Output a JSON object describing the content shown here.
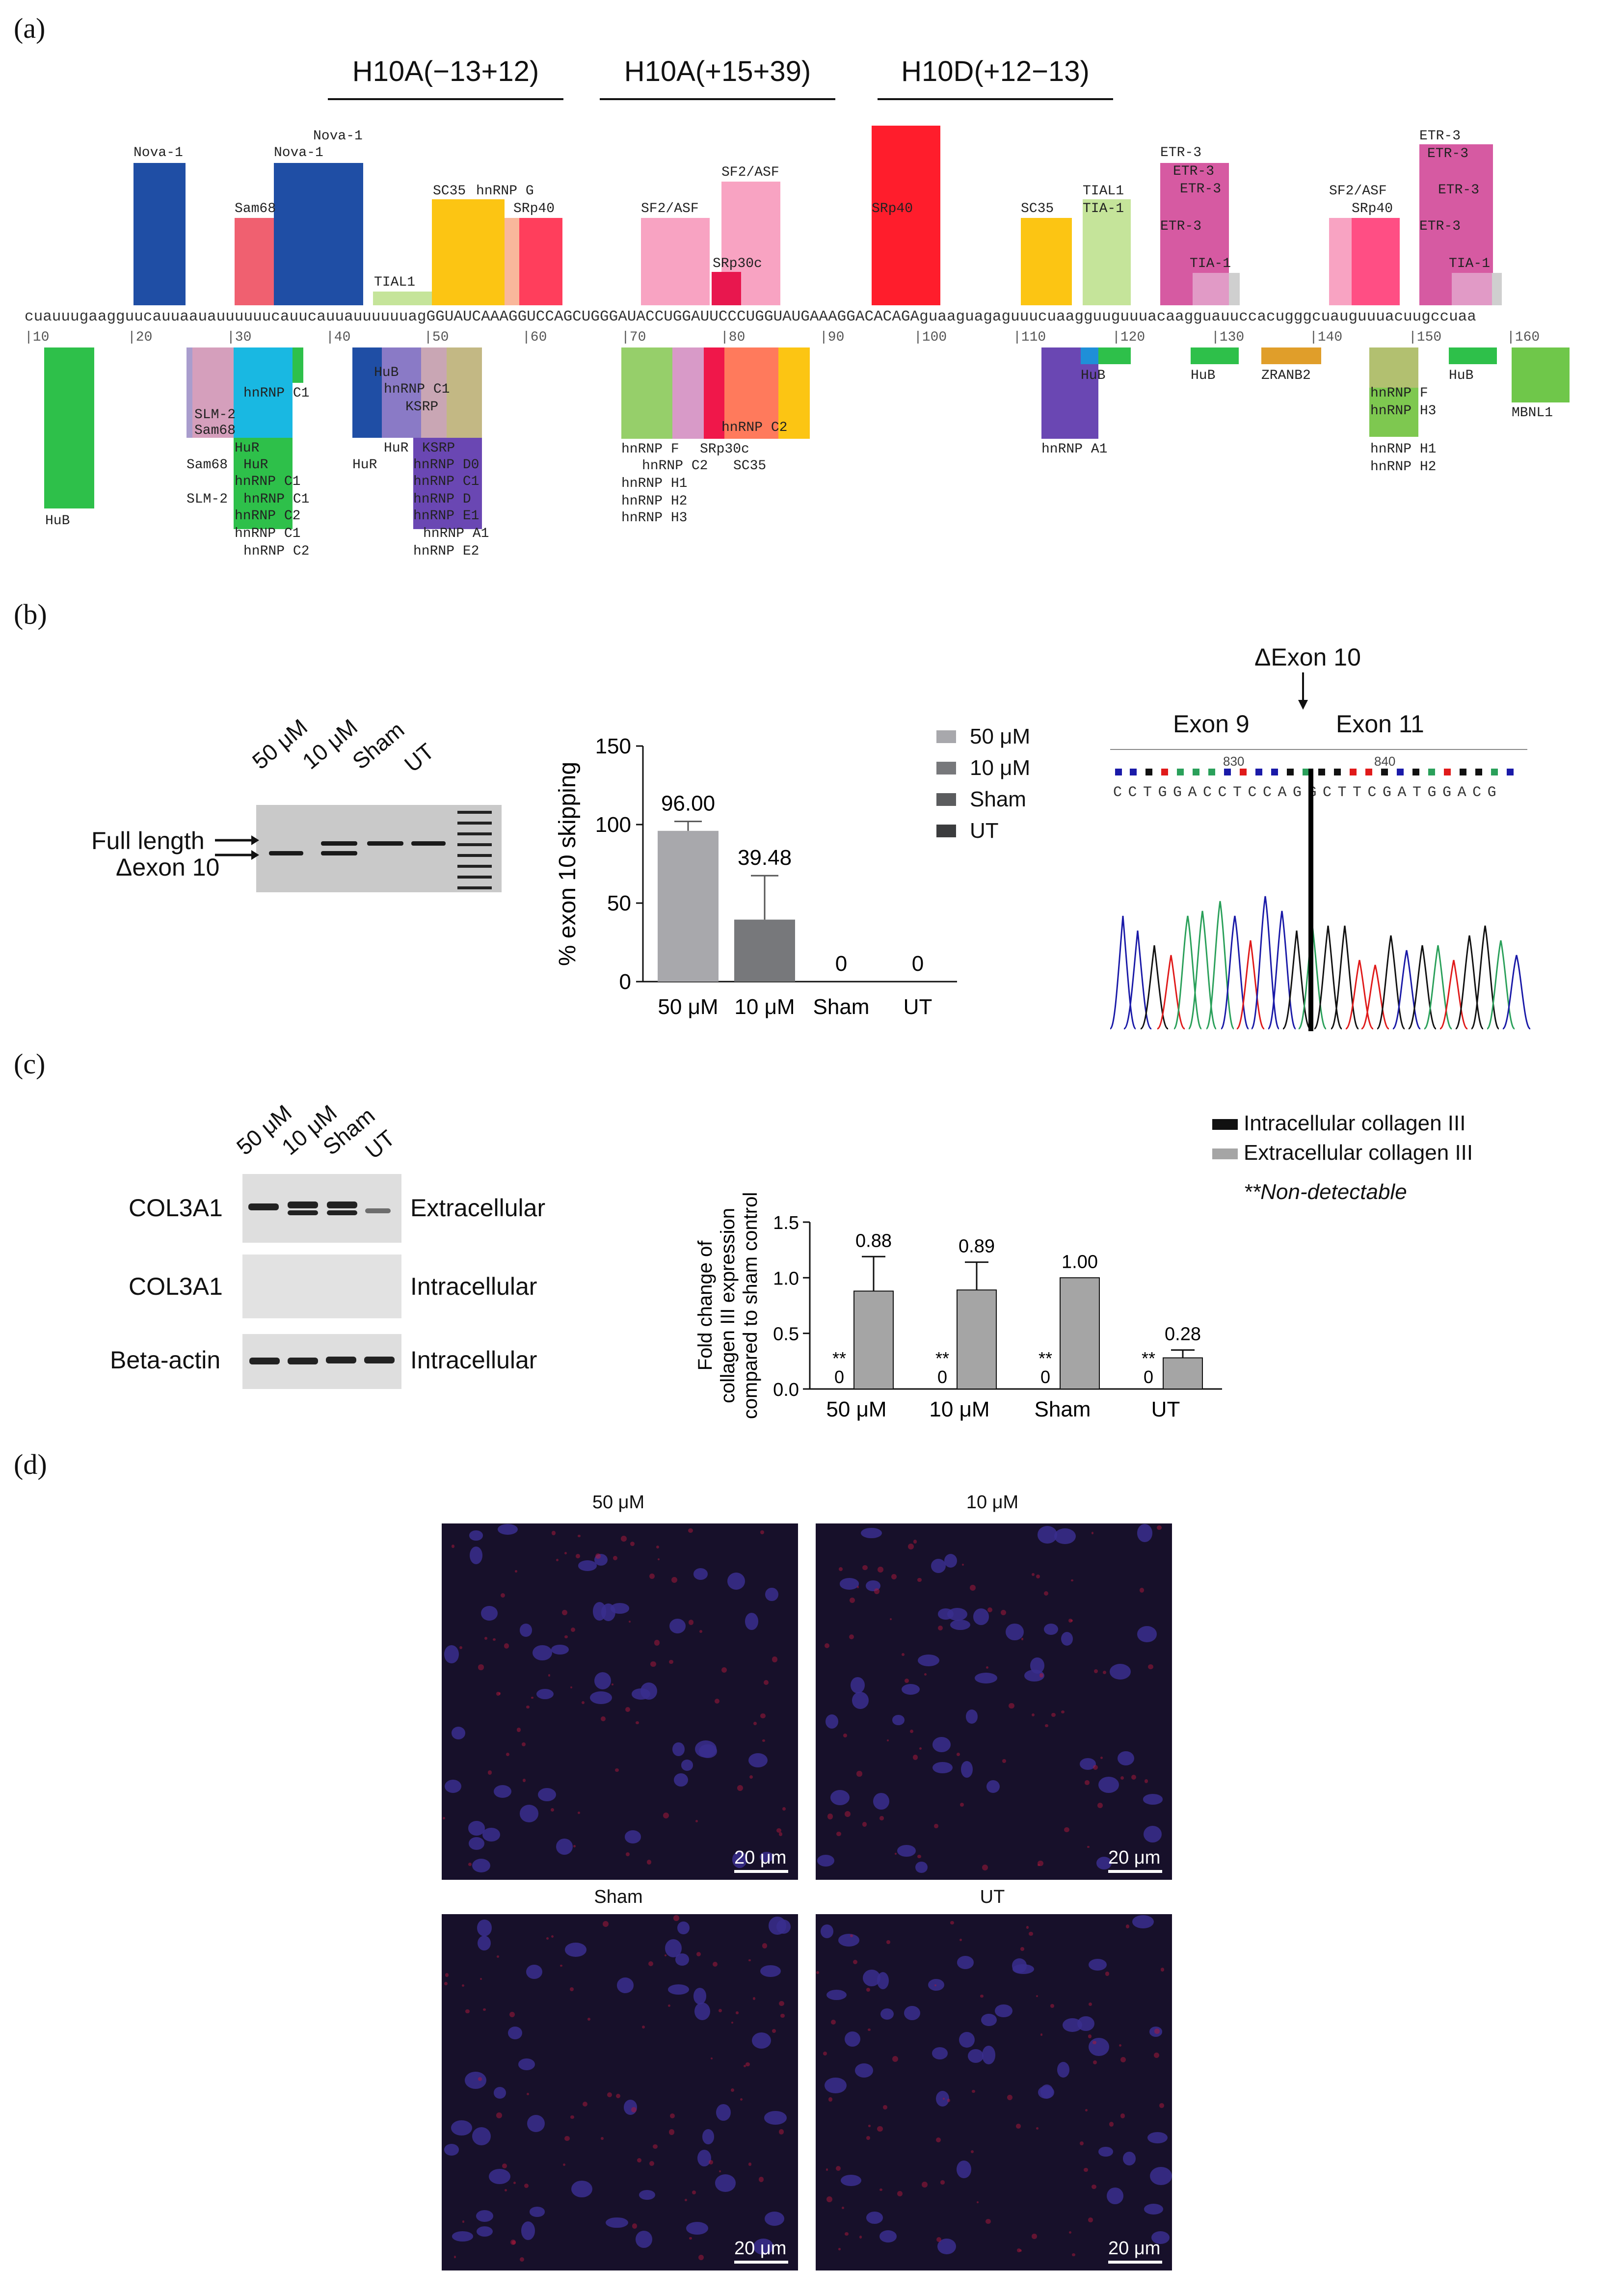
{
  "panels": {
    "a": "(a)",
    "b": "(b)",
    "c": "(c)",
    "d": "(d)"
  },
  "a": {
    "aos": [
      "H10A(−13+12)",
      "H10A(+15+39)",
      "H10D(+12−13)"
    ],
    "sequence": "cuauuugaagguucauuaauauuuuuucauucauuauuuuuuagGGUAUCAAAGGUCCAGCUGGGAUACCUGGAUUCCCUGGUAUGAAAGGACACAGAguaaguagaguuucuaagguuguuuacaagguauuccacugggcuauguuuacuugccuaa",
    "ruler": [
      "|10",
      "|20",
      "|30",
      "|40",
      "|50",
      "|60",
      "|70",
      "|80",
      "|90",
      "|100",
      "|110",
      "|120",
      "|130",
      "|140",
      "|150",
      "|160"
    ],
    "top_labels": {
      "nova1a": "Nova-1",
      "nova1b": "Nova-1",
      "nova1c": "Nova-1",
      "sam68": "Sam68",
      "tial1": "TIAL1",
      "sc35": "SC35",
      "hnrnpg": "hnRNP G",
      "srp40a": "SRp40",
      "sf2a": "SF2/ASF",
      "sf2b": "SF2/ASF",
      "srp30c": "SRp30c",
      "srp40b": "SRp40",
      "sc35b": "SC35",
      "tial1b": "TIAL1",
      "tia1a": "TIA-1",
      "etr3a": "ETR-3",
      "etr3b": "ETR-3",
      "etr3c": "ETR-3",
      "etr3d": "ETR-3",
      "tia1b": "TIA-1",
      "sf2c": "SF2/ASF",
      "srp40c": "SRp40",
      "etr3e": "ETR-3",
      "etr3f": "ETR-3",
      "etr3g": "ETR-3",
      "etr3h": "ETR-3",
      "tia1c": "TIA-1"
    },
    "bottom_labels": {
      "hub1": "HuB",
      "hnrnpc1a": "hnRNP C1",
      "slm2a": "SLM-2",
      "sam68a": "Sam68",
      "hura": "HuR",
      "sam68b": "Sam68",
      "hurb": "HuR",
      "hnrnpc1b": "hnRNP C1",
      "slm2b": "SLM-2",
      "hnrnpc1c": "hnRNP C1",
      "hnrnpc2a": "hnRNP C2",
      "hnrnpc1d": "hnRNP C1",
      "hnrnpc2b": "hnRNP C2",
      "hub2": "HuB",
      "hnrnpc1e": "hnRNP C1",
      "ksrp1": "KSRP",
      "hurc": "HuR",
      "ksrp2": "KSRP",
      "hurd": "HuR",
      "hnrnpd0": "hnRNP D0",
      "hnrnpc1f": "hnRNP C1",
      "hnrnpd": "hnRNP D",
      "hnrnpe1": "hnRNP E1",
      "hnrnpa1a": "hnRNP A1",
      "hnrnpe2": "hnRNP E2",
      "hnrnpf": "hnRNP F",
      "srp30c2": "SRp30c",
      "hnrnpc2c": "hnRNP C2",
      "sc35c": "SC35",
      "hnrnph1": "hnRNP H1",
      "hnrnph2": "hnRNP H2",
      "hnrnph3": "hnRNP H3",
      "hnrnpc2d": "hnRNP C2",
      "hnrnpa1b": "hnRNP A1",
      "hub3": "HuB",
      "hub4": "HuB",
      "zranb2": "ZRANB2",
      "hnrnpf2": "hnRNP F",
      "hnrnph3b": "hnRNP H3",
      "hnrnph1b": "hnRNP H1",
      "hnrnph2b": "hnRNP H2",
      "hub5": "HuB",
      "mbnl1": "MBNL1"
    }
  },
  "b": {
    "gel_lanes": [
      "50 μM",
      "10 μM",
      "Sham",
      "UT"
    ],
    "full_length": "Full length",
    "delta_exon10": "Δexon 10",
    "chromatogram": {
      "marker": "ΔExon 10",
      "exon9": "Exon 9",
      "exon11": "Exon 11",
      "pos1": "830",
      "pos2": "840",
      "seq": "CCTGGACCTCCAGGCTTCGATGGACG"
    }
  },
  "c": {
    "wb_lanes": [
      "50 μM",
      "10 μM",
      "Sham",
      "UT"
    ],
    "rows": [
      {
        "left": "COL3A1",
        "right": "Extracellular"
      },
      {
        "left": "COL3A1",
        "right": "Intracellular"
      },
      {
        "left": "Beta-actin",
        "right": "Intracellular"
      }
    ],
    "note": "**Non-detectable",
    "sig": "**"
  },
  "d": {
    "titles": [
      "50 μM",
      "10 μM",
      "Sham",
      "UT"
    ],
    "scale": "20 μm"
  },
  "chart_data": [
    {
      "type": "bar",
      "categories": [
        "50 μM",
        "10 μM",
        "Sham",
        "UT"
      ],
      "values": [
        96.0,
        39.48,
        0,
        0
      ],
      "value_labels": [
        "96.00",
        "39.48",
        "0",
        "0"
      ],
      "errors": [
        6,
        28,
        0,
        0
      ],
      "ylabel": "% exon 10 skipping",
      "ylim": [
        0,
        150
      ],
      "yticks": [
        "0",
        "50",
        "100",
        "150"
      ],
      "legend": [
        "50 μM",
        "10 μM",
        "Sham",
        "UT"
      ],
      "colors": [
        "#a8a8ac",
        "#77787b",
        "#5b5c5e",
        "#3b3c3e"
      ]
    },
    {
      "type": "bar",
      "categories": [
        "50 μM",
        "10 μM",
        "Sham",
        "UT"
      ],
      "series": [
        {
          "name": "Intracellular collagen III",
          "values": [
            0,
            0,
            0,
            0
          ],
          "labels": [
            "0",
            "0",
            "0",
            "0"
          ],
          "color": "#111111"
        },
        {
          "name": "Extracellular collagen III",
          "values": [
            0.88,
            0.89,
            1.0,
            0.28
          ],
          "labels": [
            "0.88",
            "0.89",
            "1.00",
            "0.28"
          ],
          "errors": [
            0.31,
            0.25,
            0,
            0.07
          ],
          "color": "#a5a5a5"
        }
      ],
      "ylabel": "Fold change of collagen III expression compared to sham control",
      "ylabel_lines": [
        "Fold change of",
        "collagen III expression",
        "compared to sham control"
      ],
      "ylim": [
        0,
        1.5
      ],
      "yticks": [
        "0.0",
        "0.5",
        "1.0",
        "1.5"
      ]
    }
  ]
}
